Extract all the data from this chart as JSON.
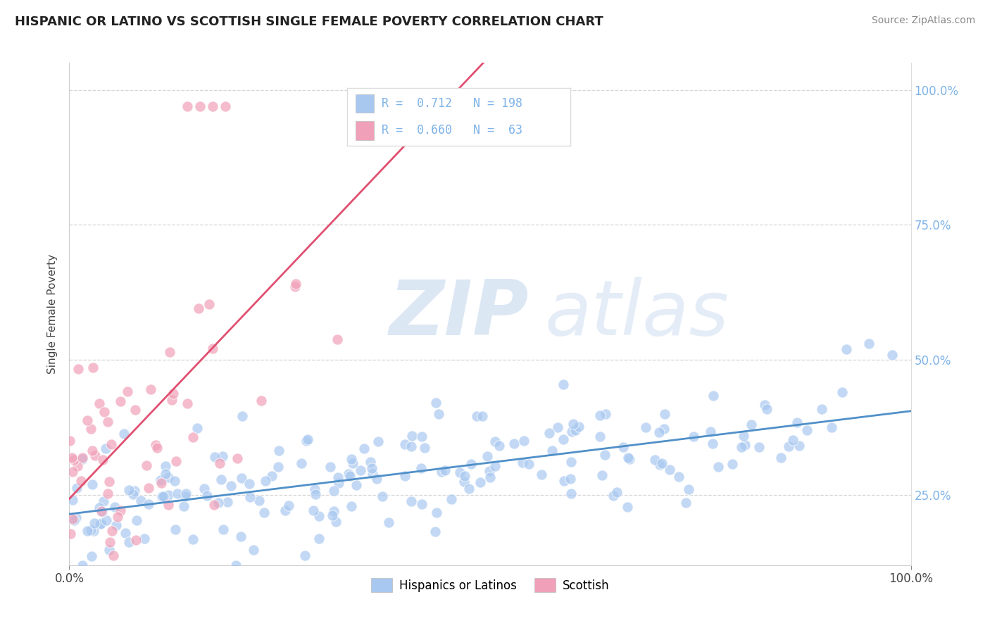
{
  "title": "HISPANIC OR LATINO VS SCOTTISH SINGLE FEMALE POVERTY CORRELATION CHART",
  "source": "Source: ZipAtlas.com",
  "ylabel": "Single Female Poverty",
  "color_blue": "#A8C8F0",
  "color_pink": "#F0A0B8",
  "line_blue": "#5090C8",
  "line_pink": "#E05070",
  "right_tick_color": "#7EB3E8",
  "watermark_zip_color": "#C0D8F0",
  "watermark_atlas_color": "#C8D8E8",
  "label_blue": "Hispanics or Latinos",
  "label_pink": "Scottish",
  "background": "#FFFFFF",
  "grid_color": "#CCCCCC",
  "title_fontsize": 13,
  "axis_label_fontsize": 11,
  "tick_fontsize": 12,
  "legend_fontsize": 13,
  "n_blue": 198,
  "n_pink": 63,
  "R_blue": 0.712,
  "R_pink": 0.66,
  "ytick_vals": [
    0.25,
    0.5,
    0.75,
    1.0
  ],
  "ytick_labels": [
    "25.0%",
    "50.0%",
    "75.0%",
    "100.0%"
  ],
  "ylim_low": 0.12,
  "ylim_high": 1.05,
  "xlim_low": 0.0,
  "xlim_high": 1.0
}
